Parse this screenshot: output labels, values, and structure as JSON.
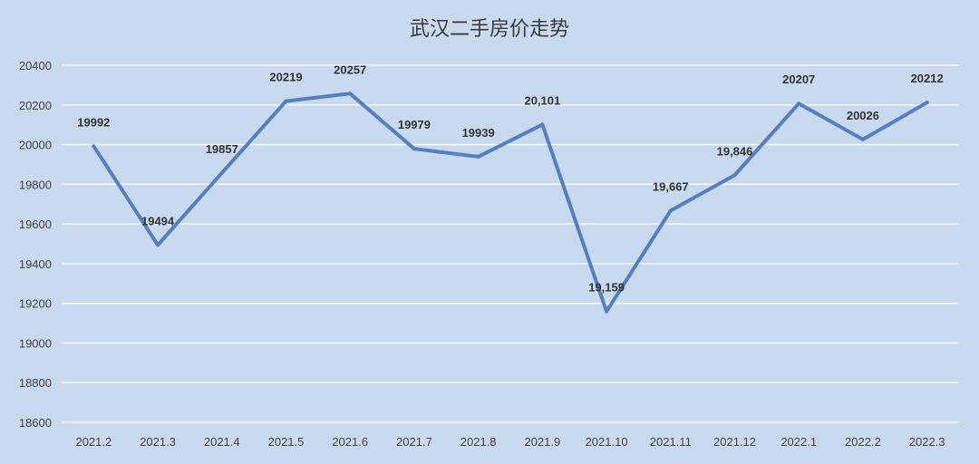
{
  "chart_data": {
    "type": "line",
    "title": "武汉二手房价走势",
    "xlabel": "",
    "ylabel": "",
    "categories": [
      "2021.2",
      "2021.3",
      "2021.4",
      "2021.5",
      "2021.6",
      "2021.7",
      "2021.8",
      "2021.9",
      "2021.10",
      "2021.11",
      "2021.12",
      "2022.1",
      "2022.2",
      "2022.3"
    ],
    "series": [
      {
        "values": [
          19992,
          19494,
          19857,
          20219,
          20257,
          19979,
          19939,
          20101,
          19159,
          19667,
          19846,
          20207,
          20026,
          20212
        ],
        "color": "#5580bd"
      }
    ],
    "data_labels": [
      "19992",
      "19494",
      "19857",
      "20219",
      "20257",
      "19979",
      "19939",
      "20,101",
      "19,159",
      "19,667",
      "19,846",
      "20207",
      "20026",
      "20212"
    ],
    "ylim": [
      18600,
      20400
    ],
    "yticks": [
      "18600",
      "18800",
      "19000",
      "19200",
      "19400",
      "19600",
      "19800",
      "20000",
      "20200",
      "20400"
    ],
    "grid": true,
    "legend": "none",
    "colors": {
      "background": "#c9daf0",
      "grid": "#ffffff",
      "line": "#5580bd"
    }
  }
}
